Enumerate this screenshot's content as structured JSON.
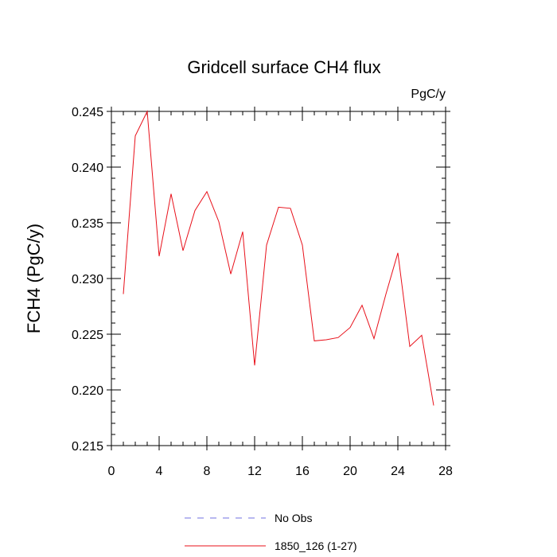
{
  "chart_data": {
    "type": "line",
    "title": "Gridcell surface CH4 flux",
    "units_label": "PgC/y",
    "ylabel": "FCH4  (PgC/y)",
    "xlabel": "",
    "xlim": [
      0,
      28
    ],
    "ylim": [
      0.215,
      0.245
    ],
    "xticks": [
      0,
      4,
      8,
      12,
      16,
      20,
      24,
      28
    ],
    "xtick_labels": [
      "0",
      "4",
      "8",
      "12",
      "16",
      "20",
      "24",
      "28"
    ],
    "yticks": [
      0.215,
      0.22,
      0.225,
      0.23,
      0.235,
      0.24,
      0.245
    ],
    "ytick_labels": [
      "0.215",
      "0.220",
      "0.225",
      "0.230",
      "0.235",
      "0.240",
      "0.245"
    ],
    "grid": false,
    "legend_position": "bottom",
    "series": [
      {
        "name": "1850_126 (1-27)",
        "color": "#e8101a",
        "dash": "solid",
        "x": [
          1,
          2,
          3,
          4,
          5,
          6,
          7,
          8,
          9,
          10,
          11,
          12,
          13,
          14,
          15,
          16,
          17,
          18,
          19,
          20,
          21,
          22,
          23,
          24,
          25,
          26,
          27
        ],
        "values": [
          0.2286,
          0.2428,
          0.245,
          0.232,
          0.2376,
          0.2325,
          0.2361,
          0.2378,
          0.2351,
          0.2304,
          0.2342,
          0.2222,
          0.233,
          0.2364,
          0.2363,
          0.233,
          0.2244,
          0.2245,
          0.2247,
          0.2256,
          0.2276,
          0.2246,
          0.2286,
          0.2323,
          0.2239,
          0.2249,
          0.2186
        ]
      }
    ],
    "legend": [
      {
        "label": "No Obs",
        "color": "#7070e0",
        "dash": "dashed"
      },
      {
        "label": "1850_126 (1-27)",
        "color": "#e8101a",
        "dash": "solid"
      }
    ]
  }
}
